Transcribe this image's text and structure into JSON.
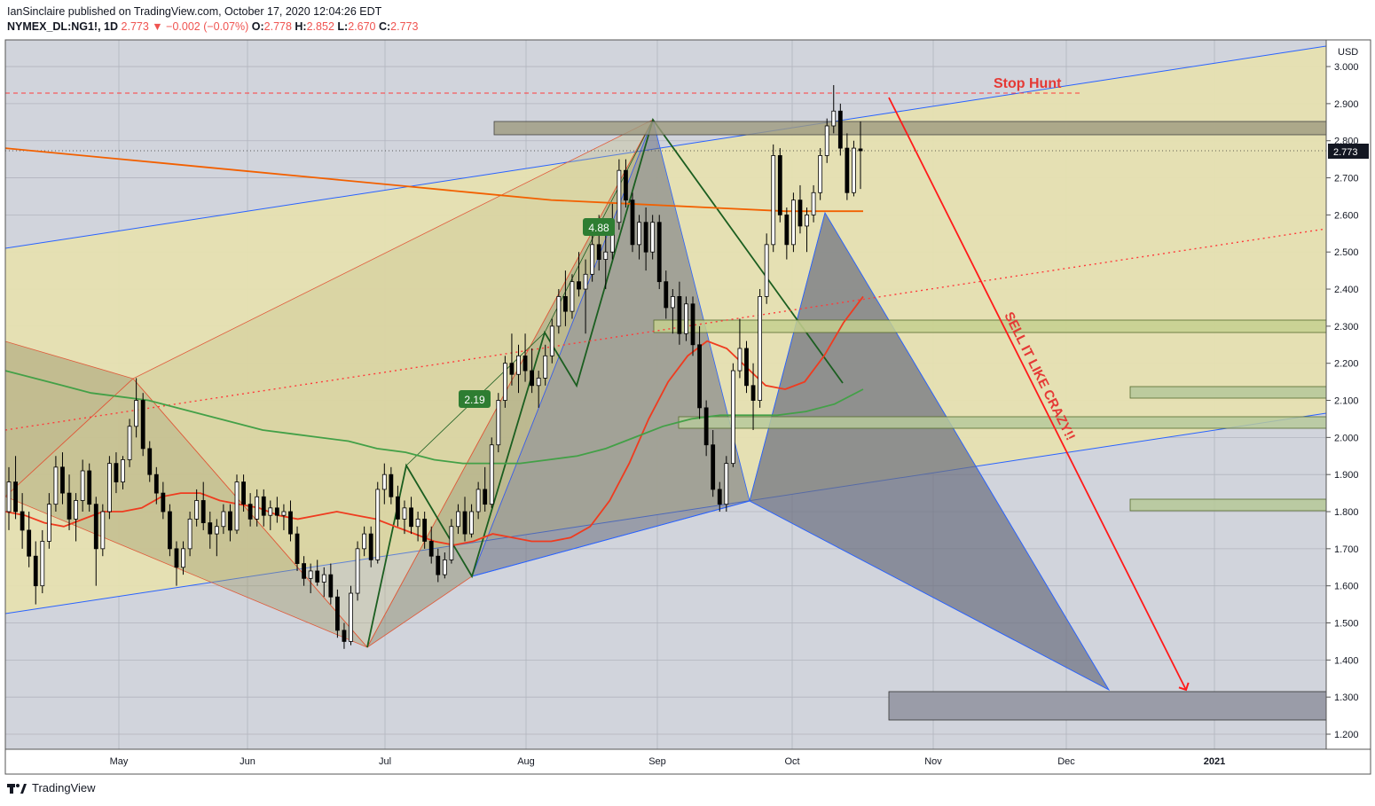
{
  "header": {
    "line1": "IanSinclaire published on TradingView.com, October 17, 2020 12:04:26 EDT",
    "symbol": "NYMEX_DL:NG1!, 1D",
    "last": "2.773",
    "change_arrow": "▼",
    "change": "−0.002 (−0.07%)",
    "o_label": "O:",
    "o_value": "2.778",
    "h_label": "H:",
    "h_value": "2.852",
    "l_label": "L:",
    "l_value": "2.670",
    "c_label": "C:",
    "c_value": "2.773"
  },
  "footer": {
    "brand": "TradingView"
  },
  "colors": {
    "plot_bg": "#d1d4dc",
    "wedge_fill": "#e6e0b0",
    "harmonic_fill": "#8a8a66",
    "pattern_fill": "#6b6f80",
    "ema_red": "#ef3b1f",
    "ma_green": "#43a047",
    "ma_orange": "#f26000",
    "resistance_red": "#e53935",
    "up_candle": "#ffffff",
    "down_candle": "#000000"
  },
  "chart_data": {
    "type": "candlestick",
    "symbol": "NYMEX_DL:NG1!",
    "timeframe": "1D",
    "y_unit": "USD",
    "ylim": [
      1.15,
      3.08
    ],
    "y_ticks": [
      "1.200",
      "1.300",
      "1.400",
      "1.500",
      "1.600",
      "1.700",
      "1.800",
      "1.900",
      "2.000",
      "2.100",
      "2.200",
      "2.300",
      "2.400",
      "2.500",
      "2.600",
      "2.700",
      "2.800",
      "2.900",
      "3.000"
    ],
    "x_ticks": [
      "May",
      "Jun",
      "Jul",
      "Aug",
      "Sep",
      "Oct",
      "Nov",
      "Dec",
      "2021"
    ],
    "last_price_label": "2.773",
    "annotations": {
      "stop_hunt": "Stop Hunt",
      "sell_text": "SELL IT LIKE CRAZY!!",
      "label_488": "4.88",
      "label_219": "2.19"
    },
    "series": [
      {
        "type": "ohlc",
        "values": [
          [
            1.8,
            1.92,
            1.75,
            1.88
          ],
          [
            1.88,
            1.95,
            1.78,
            1.8
          ],
          [
            1.8,
            1.85,
            1.7,
            1.75
          ],
          [
            1.75,
            1.8,
            1.65,
            1.68
          ],
          [
            1.68,
            1.72,
            1.55,
            1.6
          ],
          [
            1.6,
            1.75,
            1.58,
            1.72
          ],
          [
            1.72,
            1.85,
            1.7,
            1.82
          ],
          [
            1.82,
            1.95,
            1.8,
            1.92
          ],
          [
            1.92,
            1.96,
            1.82,
            1.85
          ],
          [
            1.85,
            1.9,
            1.75,
            1.78
          ],
          [
            1.78,
            1.85,
            1.72,
            1.83
          ],
          [
            1.83,
            1.94,
            1.8,
            1.91
          ],
          [
            1.91,
            1.93,
            1.8,
            1.82
          ],
          [
            1.82,
            1.84,
            1.6,
            1.7
          ],
          [
            1.7,
            1.82,
            1.68,
            1.8
          ],
          [
            1.8,
            1.95,
            1.78,
            1.93
          ],
          [
            1.93,
            1.96,
            1.85,
            1.88
          ],
          [
            1.88,
            1.95,
            1.86,
            1.94
          ],
          [
            1.94,
            2.05,
            1.92,
            2.03
          ],
          [
            2.03,
            2.16,
            2.0,
            2.1
          ],
          [
            2.1,
            2.12,
            1.95,
            1.97
          ],
          [
            1.97,
            1.99,
            1.88,
            1.9
          ],
          [
            1.9,
            1.92,
            1.82,
            1.85
          ],
          [
            1.85,
            1.88,
            1.78,
            1.8
          ],
          [
            1.8,
            1.82,
            1.68,
            1.7
          ],
          [
            1.7,
            1.72,
            1.6,
            1.65
          ],
          [
            1.65,
            1.72,
            1.63,
            1.7
          ],
          [
            1.7,
            1.8,
            1.68,
            1.78
          ],
          [
            1.78,
            1.86,
            1.76,
            1.83
          ],
          [
            1.83,
            1.88,
            1.75,
            1.77
          ],
          [
            1.77,
            1.8,
            1.7,
            1.74
          ],
          [
            1.74,
            1.78,
            1.68,
            1.76
          ],
          [
            1.76,
            1.82,
            1.74,
            1.8
          ],
          [
            1.8,
            1.82,
            1.72,
            1.75
          ],
          [
            1.75,
            1.9,
            1.74,
            1.88
          ],
          [
            1.88,
            1.9,
            1.8,
            1.82
          ],
          [
            1.82,
            1.85,
            1.76,
            1.78
          ],
          [
            1.78,
            1.86,
            1.76,
            1.84
          ],
          [
            1.84,
            1.86,
            1.76,
            1.79
          ],
          [
            1.79,
            1.83,
            1.75,
            1.81
          ],
          [
            1.81,
            1.84,
            1.77,
            1.79
          ],
          [
            1.79,
            1.82,
            1.75,
            1.8
          ],
          [
            1.8,
            1.83,
            1.72,
            1.74
          ],
          [
            1.74,
            1.76,
            1.64,
            1.66
          ],
          [
            1.66,
            1.68,
            1.6,
            1.62
          ],
          [
            1.62,
            1.66,
            1.58,
            1.64
          ],
          [
            1.64,
            1.67,
            1.6,
            1.61
          ],
          [
            1.61,
            1.65,
            1.57,
            1.63
          ],
          [
            1.63,
            1.66,
            1.55,
            1.57
          ],
          [
            1.57,
            1.59,
            1.46,
            1.48
          ],
          [
            1.48,
            1.5,
            1.43,
            1.45
          ],
          [
            1.45,
            1.6,
            1.44,
            1.58
          ],
          [
            1.58,
            1.72,
            1.56,
            1.7
          ],
          [
            1.7,
            1.76,
            1.68,
            1.74
          ],
          [
            1.74,
            1.76,
            1.65,
            1.67
          ],
          [
            1.67,
            1.88,
            1.66,
            1.86
          ],
          [
            1.86,
            1.93,
            1.82,
            1.9
          ],
          [
            1.9,
            1.92,
            1.82,
            1.84
          ],
          [
            1.84,
            1.87,
            1.76,
            1.78
          ],
          [
            1.78,
            1.83,
            1.74,
            1.81
          ],
          [
            1.81,
            1.84,
            1.74,
            1.76
          ],
          [
            1.76,
            1.8,
            1.72,
            1.78
          ],
          [
            1.78,
            1.8,
            1.7,
            1.72
          ],
          [
            1.72,
            1.76,
            1.66,
            1.68
          ],
          [
            1.68,
            1.7,
            1.61,
            1.63
          ],
          [
            1.63,
            1.69,
            1.62,
            1.67
          ],
          [
            1.67,
            1.78,
            1.66,
            1.76
          ],
          [
            1.76,
            1.82,
            1.74,
            1.8
          ],
          [
            1.8,
            1.84,
            1.72,
            1.74
          ],
          [
            1.74,
            1.82,
            1.73,
            1.8
          ],
          [
            1.8,
            1.88,
            1.78,
            1.86
          ],
          [
            1.86,
            1.92,
            1.8,
            1.82
          ],
          [
            1.82,
            2.0,
            1.81,
            1.98
          ],
          [
            1.98,
            2.12,
            1.96,
            2.1
          ],
          [
            2.1,
            2.22,
            2.08,
            2.2
          ],
          [
            2.2,
            2.28,
            2.14,
            2.17
          ],
          [
            2.17,
            2.25,
            2.12,
            2.22
          ],
          [
            2.22,
            2.28,
            2.15,
            2.18
          ],
          [
            2.18,
            2.24,
            2.12,
            2.14
          ],
          [
            2.14,
            2.18,
            2.08,
            2.16
          ],
          [
            2.16,
            2.25,
            2.14,
            2.22
          ],
          [
            2.22,
            2.32,
            2.2,
            2.3
          ],
          [
            2.3,
            2.4,
            2.28,
            2.38
          ],
          [
            2.38,
            2.45,
            2.3,
            2.34
          ],
          [
            2.34,
            2.44,
            2.32,
            2.42
          ],
          [
            2.42,
            2.5,
            2.38,
            2.4
          ],
          [
            2.4,
            2.48,
            2.28,
            2.44
          ],
          [
            2.44,
            2.55,
            2.42,
            2.52
          ],
          [
            2.52,
            2.6,
            2.45,
            2.48
          ],
          [
            2.48,
            2.55,
            2.4,
            2.5
          ],
          [
            2.5,
            2.63,
            2.48,
            2.58
          ],
          [
            2.58,
            2.75,
            2.56,
            2.72
          ],
          [
            2.72,
            2.75,
            2.62,
            2.64
          ],
          [
            2.64,
            2.66,
            2.5,
            2.52
          ],
          [
            2.52,
            2.6,
            2.48,
            2.58
          ],
          [
            2.58,
            2.62,
            2.45,
            2.5
          ],
          [
            2.5,
            2.6,
            2.48,
            2.58
          ],
          [
            2.58,
            2.6,
            2.4,
            2.42
          ],
          [
            2.42,
            2.45,
            2.32,
            2.35
          ],
          [
            2.35,
            2.4,
            2.28,
            2.38
          ],
          [
            2.38,
            2.42,
            2.25,
            2.28
          ],
          [
            2.28,
            2.38,
            2.26,
            2.36
          ],
          [
            2.36,
            2.38,
            2.22,
            2.25
          ],
          [
            2.25,
            2.3,
            2.05,
            2.08
          ],
          [
            2.08,
            2.1,
            1.95,
            1.98
          ],
          [
            1.98,
            2.02,
            1.84,
            1.86
          ],
          [
            1.86,
            1.88,
            1.8,
            1.82
          ],
          [
            1.82,
            1.95,
            1.8,
            1.93
          ],
          [
            1.93,
            2.2,
            1.92,
            2.18
          ],
          [
            2.18,
            2.32,
            2.16,
            2.24
          ],
          [
            2.24,
            2.26,
            2.12,
            2.14
          ],
          [
            2.14,
            2.2,
            2.02,
            2.1
          ],
          [
            2.1,
            2.4,
            2.08,
            2.38
          ],
          [
            2.38,
            2.55,
            2.36,
            2.52
          ],
          [
            2.52,
            2.79,
            2.5,
            2.76
          ],
          [
            2.76,
            2.78,
            2.58,
            2.6
          ],
          [
            2.6,
            2.62,
            2.48,
            2.52
          ],
          [
            2.52,
            2.66,
            2.5,
            2.64
          ],
          [
            2.64,
            2.68,
            2.55,
            2.57
          ],
          [
            2.57,
            2.62,
            2.5,
            2.6
          ],
          [
            2.6,
            2.68,
            2.58,
            2.66
          ],
          [
            2.66,
            2.78,
            2.64,
            2.76
          ],
          [
            2.76,
            2.86,
            2.74,
            2.84
          ],
          [
            2.84,
            2.95,
            2.82,
            2.88
          ],
          [
            2.88,
            2.9,
            2.76,
            2.78
          ],
          [
            2.78,
            2.82,
            2.64,
            2.66
          ],
          [
            2.66,
            2.8,
            2.65,
            2.78
          ],
          [
            2.778,
            2.852,
            2.67,
            2.773
          ]
        ]
      },
      {
        "name": "",
        "type": "ma",
        "color": "#ef3b1f",
        "values": [
          1.8,
          1.79,
          1.77,
          1.76,
          1.78,
          1.8,
          1.8,
          1.81,
          1.84,
          1.85,
          1.85,
          1.83,
          1.82,
          1.81,
          1.79,
          1.78,
          1.79,
          1.8,
          1.79,
          1.78,
          1.76,
          1.74,
          1.72,
          1.71,
          1.72,
          1.74,
          1.73,
          1.72,
          1.72,
          1.73,
          1.76,
          1.83,
          1.93,
          2.05,
          2.15,
          2.22,
          2.26,
          2.24,
          2.19,
          2.14,
          2.13,
          2.15,
          2.22,
          2.31,
          2.38
        ]
      },
      {
        "name": "",
        "type": "ma",
        "color": "#43a047",
        "values": [
          2.18,
          2.16,
          2.14,
          2.12,
          2.11,
          2.1,
          2.08,
          2.06,
          2.04,
          2.02,
          2.01,
          2.0,
          1.99,
          1.97,
          1.96,
          1.94,
          1.93,
          1.93,
          1.93,
          1.94,
          1.95,
          1.97,
          2.0,
          2.03,
          2.05,
          2.06,
          2.06,
          2.06,
          2.07,
          2.09,
          2.13
        ]
      },
      {
        "name": "",
        "type": "ma",
        "color": "#f26000",
        "values": [
          2.78,
          2.76,
          2.74,
          2.72,
          2.7,
          2.68,
          2.66,
          2.64,
          2.63,
          2.62,
          2.61,
          2.61
        ]
      }
    ]
  }
}
